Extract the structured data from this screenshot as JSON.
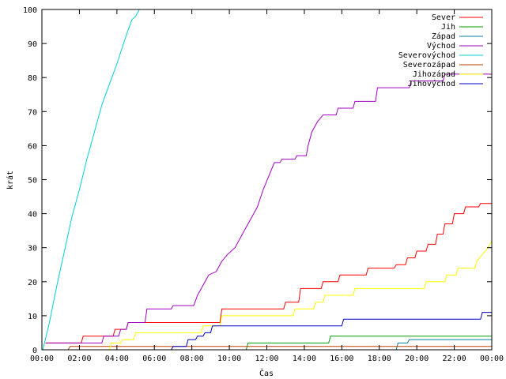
{
  "chart_data": {
    "type": "line",
    "title": "",
    "xlabel": "Čas",
    "ylabel": "krát",
    "xlim": [
      0,
      24
    ],
    "ylim": [
      0,
      100
    ],
    "grid": false,
    "legend_position": "top-right",
    "x_ticks": [
      {
        "value": 0,
        "label": "00:00"
      },
      {
        "value": 2,
        "label": "02:00"
      },
      {
        "value": 4,
        "label": "04:00"
      },
      {
        "value": 6,
        "label": "06:00"
      },
      {
        "value": 8,
        "label": "08:00"
      },
      {
        "value": 10,
        "label": "10:00"
      },
      {
        "value": 12,
        "label": "12:00"
      },
      {
        "value": 14,
        "label": "14:00"
      },
      {
        "value": 16,
        "label": "16:00"
      },
      {
        "value": 18,
        "label": "18:00"
      },
      {
        "value": 20,
        "label": "20:00"
      },
      {
        "value": 22,
        "label": "22:00"
      },
      {
        "value": 24,
        "label": "00:00"
      }
    ],
    "y_ticks": [
      {
        "value": 0,
        "label": "0"
      },
      {
        "value": 10,
        "label": "10"
      },
      {
        "value": 20,
        "label": "20"
      },
      {
        "value": 30,
        "label": "30"
      },
      {
        "value": 40,
        "label": "40"
      },
      {
        "value": 50,
        "label": "50"
      },
      {
        "value": 60,
        "label": "60"
      },
      {
        "value": 70,
        "label": "70"
      },
      {
        "value": 80,
        "label": "80"
      },
      {
        "value": 90,
        "label": "90"
      },
      {
        "value": 100,
        "label": "100"
      }
    ],
    "series": [
      {
        "name": "Sever",
        "color": "#ff0000",
        "points": [
          [
            0.2,
            2
          ],
          [
            2.1,
            2
          ],
          [
            2.2,
            4
          ],
          [
            3.8,
            4
          ],
          [
            3.9,
            6
          ],
          [
            4.5,
            6
          ],
          [
            4.6,
            8
          ],
          [
            9.5,
            8
          ],
          [
            9.6,
            12
          ],
          [
            12.9,
            12
          ],
          [
            13.0,
            14
          ],
          [
            13.7,
            14
          ],
          [
            13.8,
            18
          ],
          [
            14.9,
            18
          ],
          [
            15.0,
            20
          ],
          [
            15.8,
            20
          ],
          [
            15.9,
            22
          ],
          [
            17.3,
            22
          ],
          [
            17.4,
            24
          ],
          [
            18.8,
            24
          ],
          [
            18.9,
            25
          ],
          [
            19.4,
            25
          ],
          [
            19.5,
            27
          ],
          [
            19.9,
            27
          ],
          [
            20.0,
            29
          ],
          [
            20.5,
            29
          ],
          [
            20.6,
            31
          ],
          [
            21.0,
            31
          ],
          [
            21.1,
            34
          ],
          [
            21.4,
            34
          ],
          [
            21.5,
            37
          ],
          [
            21.9,
            37
          ],
          [
            22.0,
            40
          ],
          [
            22.5,
            40
          ],
          [
            22.6,
            42
          ],
          [
            23.3,
            42
          ],
          [
            23.4,
            43
          ],
          [
            24,
            43
          ]
        ]
      },
      {
        "name": "Jih",
        "color": "#00a000",
        "points": [
          [
            10.9,
            0
          ],
          [
            11.0,
            2
          ],
          [
            15.3,
            2
          ],
          [
            15.4,
            4
          ],
          [
            24,
            4
          ]
        ]
      },
      {
        "name": "Západ",
        "color": "#0080a0",
        "points": [
          [
            18.9,
            0
          ],
          [
            19.0,
            2
          ],
          [
            19.5,
            2
          ],
          [
            19.6,
            3
          ],
          [
            24,
            3
          ]
        ]
      },
      {
        "name": "Východ",
        "color": "#a000c0",
        "points": [
          [
            0.2,
            2
          ],
          [
            3.2,
            2
          ],
          [
            3.3,
            4
          ],
          [
            4.1,
            4
          ],
          [
            4.2,
            6
          ],
          [
            4.5,
            6
          ],
          [
            4.6,
            8
          ],
          [
            5.5,
            8
          ],
          [
            5.6,
            12
          ],
          [
            6.9,
            12
          ],
          [
            7.0,
            13
          ],
          [
            8.1,
            13
          ],
          [
            8.3,
            16
          ],
          [
            8.6,
            19
          ],
          [
            8.9,
            22
          ],
          [
            9.3,
            23
          ],
          [
            9.6,
            26
          ],
          [
            9.9,
            28
          ],
          [
            10.3,
            30
          ],
          [
            10.6,
            33
          ],
          [
            10.9,
            36
          ],
          [
            11.2,
            39
          ],
          [
            11.5,
            42
          ],
          [
            11.8,
            47
          ],
          [
            12.1,
            51
          ],
          [
            12.4,
            55
          ],
          [
            12.7,
            55
          ],
          [
            12.8,
            56
          ],
          [
            13.5,
            56
          ],
          [
            13.6,
            57
          ],
          [
            14.1,
            57
          ],
          [
            14.2,
            60
          ],
          [
            14.4,
            64
          ],
          [
            14.7,
            67
          ],
          [
            15.0,
            69
          ],
          [
            15.7,
            69
          ],
          [
            15.8,
            71
          ],
          [
            16.6,
            71
          ],
          [
            16.7,
            73
          ],
          [
            17.8,
            73
          ],
          [
            17.9,
            77
          ],
          [
            19.6,
            77
          ],
          [
            19.7,
            79
          ],
          [
            21.4,
            79
          ],
          [
            21.5,
            81
          ],
          [
            24,
            81
          ]
        ]
      },
      {
        "name": "Severovýchod",
        "color": "#00d0d0",
        "points": [
          [
            0.05,
            0
          ],
          [
            0.4,
            8
          ],
          [
            0.8,
            19
          ],
          [
            1.2,
            29
          ],
          [
            1.6,
            39
          ],
          [
            2.0,
            47
          ],
          [
            2.4,
            56
          ],
          [
            2.8,
            64
          ],
          [
            3.2,
            72
          ],
          [
            3.6,
            78
          ],
          [
            4.0,
            84
          ],
          [
            4.3,
            89
          ],
          [
            4.6,
            94
          ],
          [
            4.8,
            97
          ],
          [
            5.0,
            98
          ],
          [
            5.2,
            100
          ]
        ]
      },
      {
        "name": "Severozápad",
        "color": "#c04000",
        "points": [
          [
            1.4,
            0
          ],
          [
            1.5,
            1
          ],
          [
            24,
            1
          ]
        ]
      },
      {
        "name": "Jihozápad",
        "color": "#ffff00",
        "points": [
          [
            3.6,
            0
          ],
          [
            3.7,
            2
          ],
          [
            4.2,
            2
          ],
          [
            4.3,
            3
          ],
          [
            4.9,
            3
          ],
          [
            5.0,
            5
          ],
          [
            8.5,
            5
          ],
          [
            8.6,
            7
          ],
          [
            9.5,
            7
          ],
          [
            9.6,
            10
          ],
          [
            13.4,
            10
          ],
          [
            13.5,
            12
          ],
          [
            14.5,
            12
          ],
          [
            14.6,
            14
          ],
          [
            15.0,
            14
          ],
          [
            15.1,
            16
          ],
          [
            16.6,
            16
          ],
          [
            16.7,
            18
          ],
          [
            20.4,
            18
          ],
          [
            20.5,
            20
          ],
          [
            21.5,
            20
          ],
          [
            21.6,
            22
          ],
          [
            22.1,
            22
          ],
          [
            22.2,
            24
          ],
          [
            23.1,
            24
          ],
          [
            23.2,
            26
          ],
          [
            23.5,
            28
          ],
          [
            23.8,
            30
          ],
          [
            24,
            32
          ]
        ]
      },
      {
        "name": "Jihovýchod",
        "color": "#0000c0",
        "points": [
          [
            6.9,
            0
          ],
          [
            7.0,
            1
          ],
          [
            7.7,
            1
          ],
          [
            7.8,
            3
          ],
          [
            8.2,
            3
          ],
          [
            8.3,
            4
          ],
          [
            8.6,
            4
          ],
          [
            8.7,
            5
          ],
          [
            9.0,
            5
          ],
          [
            9.1,
            7
          ],
          [
            16.0,
            7
          ],
          [
            16.1,
            9
          ],
          [
            23.4,
            9
          ],
          [
            23.5,
            11
          ],
          [
            24,
            11
          ]
        ]
      }
    ]
  }
}
